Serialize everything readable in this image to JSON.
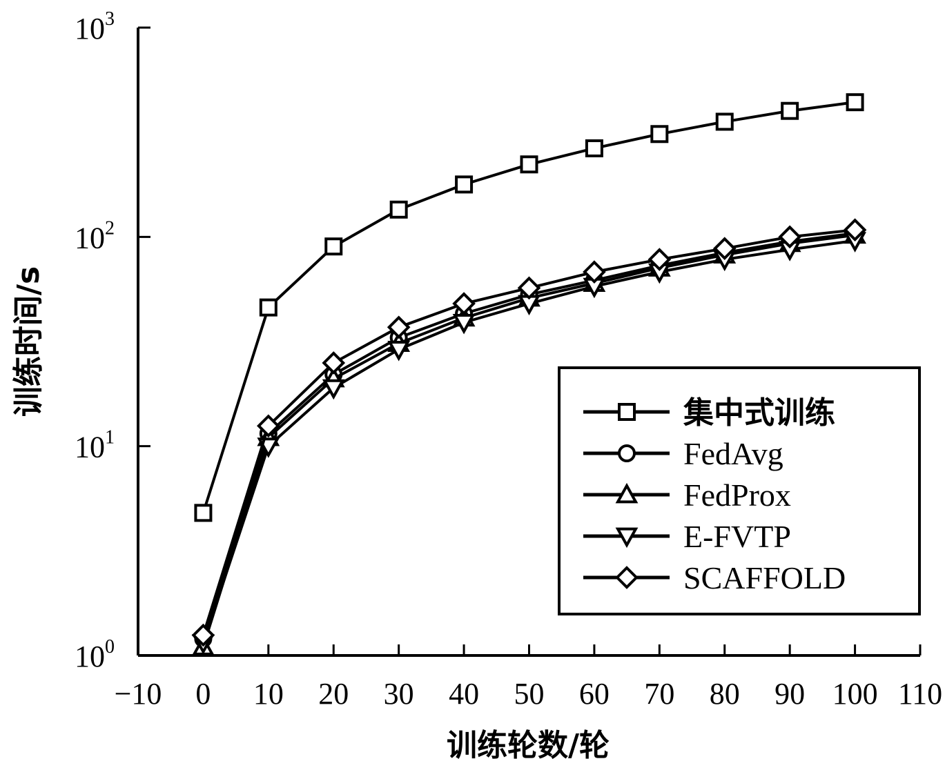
{
  "chart_data": {
    "type": "line",
    "xlabel": "训练轮数/轮",
    "ylabel": "训练时间/s",
    "xlim": [
      -10,
      110
    ],
    "xticks": [
      -10,
      0,
      10,
      20,
      30,
      40,
      50,
      60,
      70,
      80,
      90,
      100,
      110
    ],
    "xtick_labels": [
      "−10",
      "0",
      "10",
      "20",
      "30",
      "40",
      "50",
      "60",
      "70",
      "80",
      "90",
      "100",
      "110"
    ],
    "ylim": [
      1,
      1000
    ],
    "yscale": "log",
    "yticks": [
      {
        "base": "10",
        "exp": "0",
        "value": 1
      },
      {
        "base": "10",
        "exp": "1",
        "value": 10
      },
      {
        "base": "10",
        "exp": "2",
        "value": 100
      },
      {
        "base": "10",
        "exp": "3",
        "value": 1000
      }
    ],
    "grid": false,
    "legend_position": "right",
    "x": [
      0,
      10,
      20,
      30,
      40,
      50,
      60,
      70,
      80,
      90,
      100
    ],
    "series": [
      {
        "name": "集中式训练",
        "marker": "square",
        "values": [
          4.8,
          46,
          90,
          135,
          178,
          222,
          265,
          310,
          355,
          400,
          440
        ]
      },
      {
        "name": "FedAvg",
        "marker": "circle",
        "values": [
          1.2,
          11.5,
          22,
          33,
          43,
          53,
          62,
          73,
          84,
          95,
          104
        ]
      },
      {
        "name": "FedProx",
        "marker": "triangle-up",
        "values": [
          1.1,
          11,
          21,
          31,
          41,
          51,
          60,
          71,
          82,
          93,
          102
        ]
      },
      {
        "name": "E-FVTP",
        "marker": "triangle-down",
        "values": [
          1.15,
          10,
          19,
          29,
          39,
          48,
          58,
          68,
          78,
          87,
          96
        ]
      },
      {
        "name": "SCAFFOLD",
        "marker": "diamond",
        "values": [
          1.25,
          12.5,
          25,
          37,
          48,
          57,
          68,
          78,
          88,
          100,
          108
        ]
      }
    ]
  }
}
